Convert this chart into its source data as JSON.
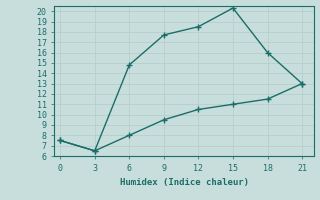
{
  "title": "",
  "xlabel": "Humidex (Indice chaleur)",
  "ylabel": "",
  "background_color": "#c8dedd",
  "grid_color": "#b8cecc",
  "line_color": "#1a6e68",
  "upper_x": [
    0,
    3,
    6,
    9,
    12,
    15,
    18,
    21
  ],
  "upper_y": [
    7.5,
    6.5,
    14.8,
    17.7,
    18.5,
    20.3,
    16.0,
    13.0
  ],
  "lower_x": [
    0,
    3,
    6,
    9,
    12,
    15,
    18,
    21
  ],
  "lower_y": [
    7.5,
    6.5,
    8.0,
    9.5,
    10.5,
    11.0,
    11.5,
    13.0
  ],
  "xlim": [
    -0.5,
    22
  ],
  "ylim": [
    6,
    20.5
  ],
  "xticks": [
    0,
    3,
    6,
    9,
    12,
    15,
    18,
    21
  ],
  "yticks": [
    6,
    7,
    8,
    9,
    10,
    11,
    12,
    13,
    14,
    15,
    16,
    17,
    18,
    19,
    20
  ],
  "marker": "+",
  "markersize": 5,
  "linewidth": 1.0
}
